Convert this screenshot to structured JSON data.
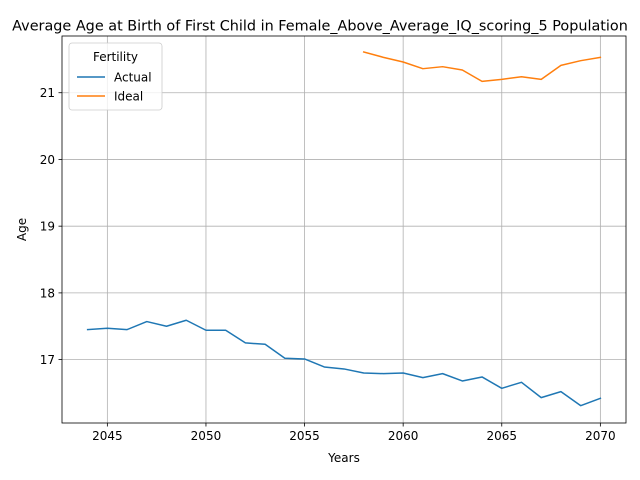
{
  "chart_data": {
    "type": "line",
    "title": "Average Age at Birth of First Child in Female_Above_Average_IQ_scoring_5 Population",
    "xlabel": "Years",
    "ylabel": "Age",
    "xlim": [
      2042.7,
      2071.3
    ],
    "ylim": [
      16.05,
      21.85
    ],
    "xticks": [
      2045,
      2050,
      2055,
      2060,
      2065,
      2070
    ],
    "yticks": [
      17,
      18,
      19,
      20,
      21
    ],
    "grid": true,
    "legend": {
      "title": "Fertility",
      "placement": "top-left"
    },
    "series": [
      {
        "name": "Actual",
        "color": "#1f77b4",
        "x": [
          2044,
          2045,
          2046,
          2047,
          2048,
          2049,
          2050,
          2051,
          2052,
          2053,
          2054,
          2055,
          2056,
          2057,
          2058,
          2059,
          2060,
          2061,
          2062,
          2063,
          2064,
          2065,
          2066,
          2067,
          2068,
          2069,
          2070
        ],
        "values": [
          17.45,
          17.47,
          17.45,
          17.57,
          17.5,
          17.59,
          17.44,
          17.44,
          17.25,
          17.23,
          17.02,
          17.01,
          16.89,
          16.86,
          16.8,
          16.79,
          16.8,
          16.73,
          16.79,
          16.68,
          16.74,
          16.57,
          16.66,
          16.43,
          16.52,
          16.31,
          16.42
        ]
      },
      {
        "name": "Ideal",
        "color": "#ff7f0e",
        "x": [
          2058,
          2059,
          2060,
          2061,
          2062,
          2063,
          2064,
          2065,
          2066,
          2067,
          2068,
          2069,
          2070
        ],
        "values": [
          21.61,
          21.53,
          21.46,
          21.36,
          21.39,
          21.34,
          21.17,
          21.2,
          21.24,
          21.2,
          21.41,
          21.48,
          21.53
        ]
      }
    ]
  }
}
